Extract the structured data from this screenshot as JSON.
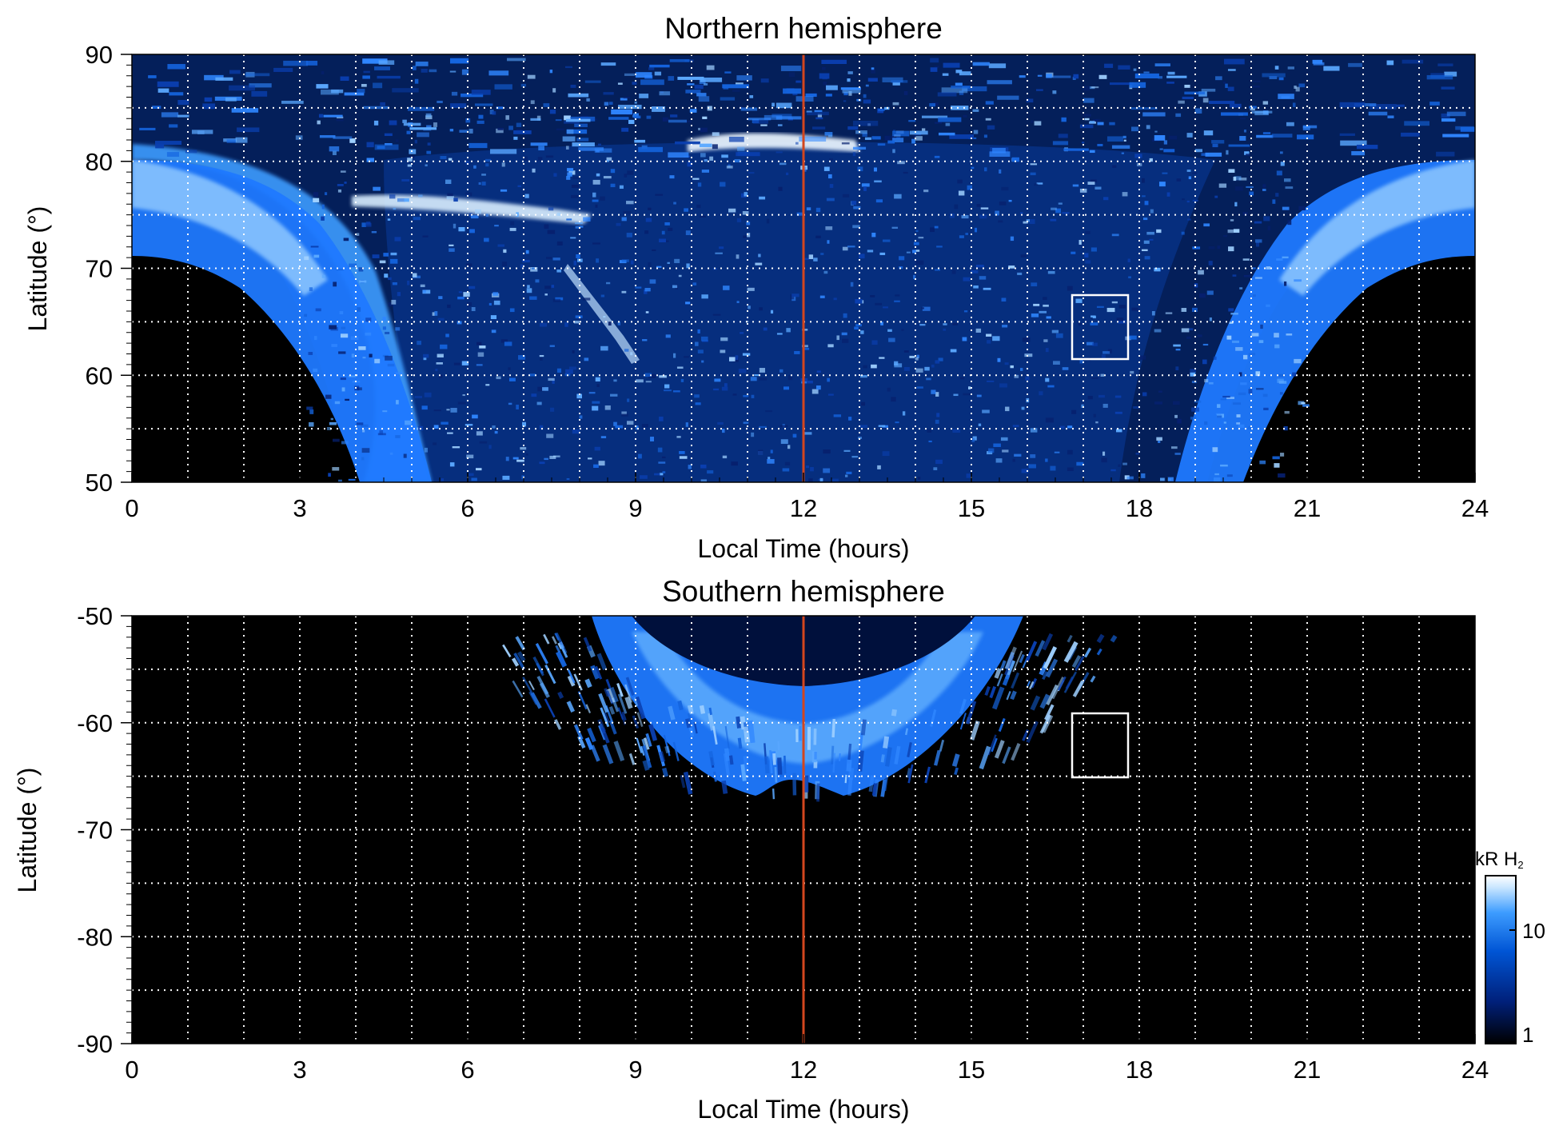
{
  "chart_data": [
    {
      "type": "heatmap",
      "title": "Northern hemisphere",
      "xlabel": "Local Time (hours)",
      "ylabel": "Latitude (°)",
      "xlim": [
        0,
        24
      ],
      "ylim": [
        50,
        90
      ],
      "xticks": [
        "0",
        "3",
        "6",
        "9",
        "12",
        "15",
        "18",
        "21",
        "24"
      ],
      "yticks": [
        "50",
        "60",
        "70",
        "80",
        "90"
      ],
      "grid": true,
      "grid_x_step_hours": 1,
      "grid_y_step_degrees": 5,
      "marker_line": {
        "x": 12,
        "color": "#d2461e"
      },
      "box": {
        "x": [
          16.8,
          17.8
        ],
        "y": [
          61.5,
          67.5
        ],
        "color": "#ffffff"
      },
      "features": [
        {
          "kind": "auroral_oval_band",
          "lt_center": 12,
          "lat_equatorward_edge_midnight": 71,
          "lat_equatorward_edge_noon": 50,
          "peak_kR": 25
        },
        {
          "kind": "bright_arc",
          "lt": [
            5.0,
            8.0
          ],
          "lat": 76,
          "peak_kR": 30
        },
        {
          "kind": "bright_arc",
          "lt": [
            9.5,
            12.8
          ],
          "lat": 82,
          "peak_kR": 30
        }
      ]
    },
    {
      "type": "heatmap",
      "title": "Southern hemisphere",
      "xlabel": "Local Time (hours)",
      "ylabel": "Latitude (°)",
      "xlim": [
        0,
        24
      ],
      "ylim": [
        -90,
        -50
      ],
      "xticks": [
        "0",
        "3",
        "6",
        "9",
        "12",
        "15",
        "18",
        "21",
        "24"
      ],
      "yticks": [
        "-50",
        "-60",
        "-70",
        "-80",
        "-90"
      ],
      "grid": true,
      "grid_x_step_hours": 1,
      "grid_y_step_degrees": 5,
      "marker_line": {
        "x": 12,
        "color": "#d2461e"
      },
      "box": {
        "x": [
          16.8,
          17.8
        ],
        "y": [
          -65,
          -59
        ],
        "color": "#ffffff"
      },
      "features": [
        {
          "kind": "auroral_oval_band",
          "lt_range": [
            8.2,
            16.0
          ],
          "lat_poleward_edge_noon": -56,
          "lat_equatorward_edge_noon": -66,
          "peak_kR": 20
        }
      ]
    }
  ],
  "colorbar": {
    "label_main": "kR H",
    "label_sub": "2",
    "ticks": [
      "10",
      "1"
    ],
    "scale": "log",
    "range_kR": [
      1,
      30
    ],
    "colors": [
      "#000000",
      "#00207a",
      "#0055d5",
      "#3d9cff",
      "#c9e6ff",
      "#ffffff"
    ]
  }
}
